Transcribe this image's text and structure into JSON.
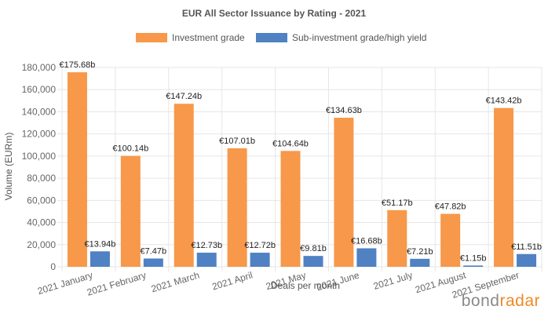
{
  "chart_data": {
    "type": "bar",
    "title": "EUR All Sector Issuance by Rating - 2021",
    "xlabel": "Deals per month",
    "ylabel": "Volume (EURm)",
    "ylim": [
      0,
      180000
    ],
    "yticks": [
      "0",
      "20,000",
      "40,000",
      "60,000",
      "80,000",
      "100,000",
      "120,000",
      "140,000",
      "160,000",
      "180,000"
    ],
    "grid": true,
    "legend_position": "top",
    "categories": [
      "2021 January",
      "2021 February",
      "2021 March",
      "2021 April",
      "2021 May",
      "2021 June",
      "2021 July",
      "2021 August",
      "2021 September"
    ],
    "series": [
      {
        "name": "Investment grade",
        "color": "#f7984a",
        "values": [
          175680,
          100140,
          147240,
          107010,
          104640,
          134630,
          51170,
          47820,
          143420
        ],
        "labels": [
          "€175.68b",
          "€100.14b",
          "€147.24b",
          "€107.01b",
          "€104.64b",
          "€134.63b",
          "€51.17b",
          "€47.82b",
          "€143.42b"
        ]
      },
      {
        "name": "Sub-investment grade/high yield",
        "color": "#4f81c3",
        "values": [
          13940,
          7470,
          12730,
          12720,
          9810,
          16680,
          7210,
          1150,
          11510
        ],
        "labels": [
          "€13.94b",
          "€7.47b",
          "€12.73b",
          "€12.72b",
          "€9.81b",
          "€16.68b",
          "€7.21b",
          "€1.15b",
          "€11.51b"
        ]
      }
    ]
  },
  "brand": {
    "part1": "bond",
    "part2": "radar"
  }
}
